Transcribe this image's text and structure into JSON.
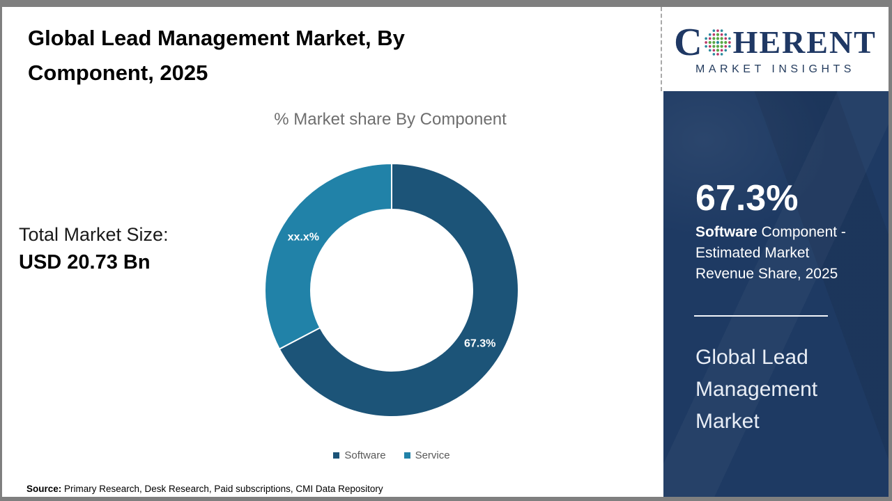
{
  "header": {
    "title": "Global Lead Management Market, By Component, 2025"
  },
  "chart_data": {
    "type": "pie",
    "subtype": "donut",
    "title": "% Market share By Component",
    "categories": [
      "Software",
      "Service"
    ],
    "values": [
      67.3,
      32.7
    ],
    "slice_labels": [
      "67.3%",
      "xx.x%"
    ],
    "colors": [
      "#1c5478",
      "#2182a8"
    ],
    "legend_position": "bottom",
    "start_angle_deg": 0,
    "direction": "clockwise",
    "donut_hole_ratio": 0.64
  },
  "left_panel": {
    "total_market_label": "Total Market Size:",
    "total_market_value": "USD 20.73 Bn"
  },
  "source": {
    "label": "Source:",
    "text": " Primary Research, Desk Research, Paid subscriptions, CMI Data Repository"
  },
  "logo": {
    "word_start": "C",
    "word_end": "HERENT",
    "subtitle": "MARKET INSIGHTS",
    "brand_color": "#1f3864",
    "globe_colors": [
      "#b93767",
      "#2a8a9d",
      "#5aa646"
    ]
  },
  "sidebar": {
    "bg_color": "#1e3a63",
    "stat_value": "67.3%",
    "stat_label_bold": "Software",
    "stat_label_rest": " Component - Estimated Market Revenue Share, 2025",
    "market_name": "Global Lead Management Market"
  }
}
